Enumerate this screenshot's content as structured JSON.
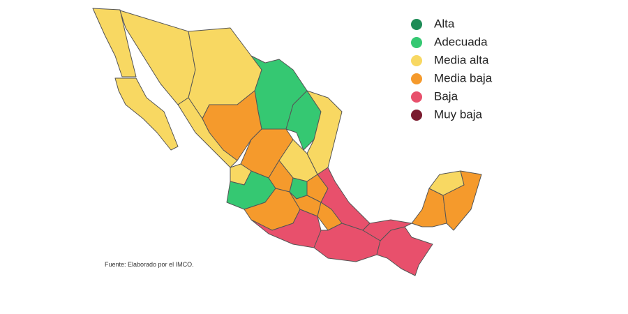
{
  "legend": [
    {
      "label": "Alta",
      "color": "#1e8c57"
    },
    {
      "label": "Adecuada",
      "color": "#35c872"
    },
    {
      "label": "Media alta",
      "color": "#f8d862"
    },
    {
      "label": "Media baja",
      "color": "#f59a2c"
    },
    {
      "label": "Baja",
      "color": "#e8506c"
    },
    {
      "label": "Muy baja",
      "color": "#7a1b2f"
    }
  ],
  "source": "Fuente: Elaborado por el IMCO."
}
